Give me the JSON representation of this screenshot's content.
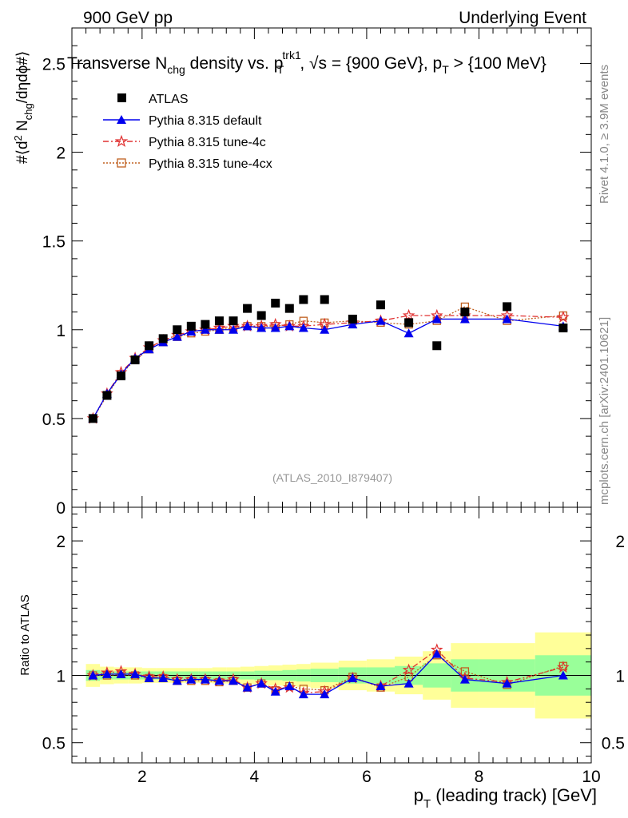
{
  "header": {
    "left": "900 GeV pp",
    "right": "Underlying Event"
  },
  "title": {
    "main": "Transverse N",
    "main_sub": "chg",
    "mid": " density vs. p",
    "mid_sup": "trk1",
    "mid_sub": "T",
    "tail": ", √s = {900 GeV}, p",
    "tail_sub": "T",
    "end": " > {100 MeV}"
  },
  "side_labels": {
    "rivet": "Rivet 4.1.0, ≥ 3.9M events",
    "mcplots": "mcplots.cern.ch [arXiv:2401.10621]"
  },
  "analysis_id": "(ATLAS_2010_I879407)",
  "colors": {
    "atlas": "#000000",
    "default": "#0000ee",
    "tune4c": "#e03030",
    "tune4cx": "#c06020",
    "band_inner": "#99ff99",
    "band_outer": "#ffff99"
  },
  "chart_data": [
    {
      "type": "scatter",
      "panel": "main",
      "ylabel": "#⟨d² N_chg/dηdϕ#⟩",
      "ylim": [
        0,
        2.7
      ],
      "yticks": [
        0,
        0.5,
        1,
        1.5,
        2,
        2.5
      ],
      "ytick_labels": [
        "0",
        "0.5",
        "1",
        "1.5",
        "2",
        "2.5"
      ],
      "xlim": [
        0.75,
        10
      ],
      "legend_position": "top-left",
      "x": [
        1.125,
        1.375,
        1.625,
        1.875,
        2.125,
        2.375,
        2.625,
        2.875,
        3.125,
        3.375,
        3.625,
        3.875,
        4.125,
        4.375,
        4.625,
        4.875,
        5.25,
        5.75,
        6.25,
        6.75,
        7.25,
        7.75,
        8.5,
        9.5
      ],
      "series": [
        {
          "name": "ATLAS",
          "marker": "square-filled",
          "values": [
            0.5,
            0.63,
            0.74,
            0.83,
            0.91,
            0.95,
            1.0,
            1.02,
            1.03,
            1.05,
            1.05,
            1.12,
            1.08,
            1.15,
            1.12,
            1.17,
            1.17,
            1.06,
            1.14,
            1.04,
            0.91,
            1.1,
            1.13,
            1.01
          ]
        },
        {
          "name": "Pythia 8.315 default",
          "marker": "triangle-filled",
          "line": "solid",
          "values": [
            0.5,
            0.64,
            0.75,
            0.84,
            0.89,
            0.93,
            0.96,
            0.99,
            1.0,
            1.0,
            1.0,
            1.02,
            1.01,
            1.01,
            1.02,
            1.01,
            1.0,
            1.03,
            1.05,
            0.98,
            1.06,
            1.06,
            1.06,
            1.02
          ]
        },
        {
          "name": "Pythia 8.315 tune-4c",
          "marker": "star-open",
          "line": "dashdot",
          "values": [
            0.5,
            0.64,
            0.76,
            0.84,
            0.9,
            0.94,
            0.97,
            0.99,
            1.0,
            1.01,
            1.02,
            1.02,
            1.02,
            1.03,
            1.02,
            1.02,
            1.03,
            1.04,
            1.05,
            1.08,
            1.08,
            1.08,
            1.08,
            1.07
          ]
        },
        {
          "name": "Pythia 8.315 tune-4cx",
          "marker": "square-open",
          "line": "dotted",
          "values": [
            0.5,
            0.63,
            0.75,
            0.83,
            0.89,
            0.93,
            0.96,
            0.98,
            0.99,
            1.0,
            1.01,
            1.02,
            1.02,
            1.02,
            1.03,
            1.05,
            1.04,
            1.05,
            1.04,
            1.03,
            1.05,
            1.13,
            1.05,
            1.08
          ]
        }
      ]
    },
    {
      "type": "line",
      "panel": "ratio",
      "ylabel": "Ratio to ATLAS",
      "xlabel": "p_T (leading track) [GeV]",
      "xlim": [
        0.75,
        10
      ],
      "ylim": [
        0.35,
        2.25
      ],
      "xticks": [
        2,
        4,
        6,
        8,
        10
      ],
      "xtick_labels": [
        "2",
        "4",
        "6",
        "8",
        "10"
      ],
      "yticks": [
        0.5,
        1,
        2
      ],
      "ytick_labels": [
        "0.5",
        "1",
        "2"
      ],
      "x": [
        1.125,
        1.375,
        1.625,
        1.875,
        2.125,
        2.375,
        2.625,
        2.875,
        3.125,
        3.375,
        3.625,
        3.875,
        4.125,
        4.375,
        4.625,
        4.875,
        5.25,
        5.75,
        6.25,
        6.75,
        7.25,
        7.75,
        8.5,
        9.5
      ],
      "bands": {
        "edges": [
          1,
          1.25,
          1.5,
          1.75,
          2,
          2.25,
          2.5,
          2.75,
          3,
          3.25,
          3.5,
          3.75,
          4,
          4.25,
          4.5,
          4.75,
          5,
          5.5,
          6,
          6.5,
          7,
          7.5,
          8,
          9,
          10
        ],
        "inner": [
          0.04,
          0.03,
          0.03,
          0.03,
          0.03,
          0.03,
          0.03,
          0.03,
          0.03,
          0.03,
          0.03,
          0.03,
          0.035,
          0.035,
          0.04,
          0.045,
          0.05,
          0.06,
          0.06,
          0.07,
          0.09,
          0.12,
          0.12,
          0.15
        ],
        "outer": [
          0.085,
          0.065,
          0.06,
          0.06,
          0.055,
          0.055,
          0.055,
          0.055,
          0.055,
          0.06,
          0.06,
          0.065,
          0.07,
          0.075,
          0.08,
          0.085,
          0.095,
          0.11,
          0.12,
          0.14,
          0.18,
          0.24,
          0.24,
          0.32
        ]
      },
      "series": [
        {
          "name": "Pythia 8.315 default",
          "values": [
            1.0,
            1.01,
            1.01,
            1.01,
            0.98,
            0.98,
            0.96,
            0.97,
            0.97,
            0.96,
            0.96,
            0.91,
            0.94,
            0.88,
            0.92,
            0.86,
            0.86,
            0.98,
            0.92,
            0.94,
            1.16,
            0.97,
            0.94,
            1.0
          ]
        },
        {
          "name": "Pythia 8.315 tune-4c",
          "values": [
            1.0,
            1.02,
            1.03,
            1.01,
            0.99,
            0.99,
            0.97,
            0.97,
            0.97,
            0.96,
            0.97,
            0.91,
            0.94,
            0.9,
            0.91,
            0.87,
            0.88,
            0.98,
            0.92,
            1.04,
            1.19,
            0.98,
            0.95,
            1.06
          ]
        },
        {
          "name": "Pythia 8.315 tune-4cx",
          "values": [
            1.0,
            1.0,
            1.01,
            1.0,
            0.98,
            0.98,
            0.96,
            0.96,
            0.96,
            0.95,
            0.96,
            0.91,
            0.94,
            0.89,
            0.92,
            0.9,
            0.89,
            0.99,
            0.91,
            0.99,
            1.15,
            1.03,
            0.93,
            1.07
          ]
        }
      ]
    }
  ]
}
